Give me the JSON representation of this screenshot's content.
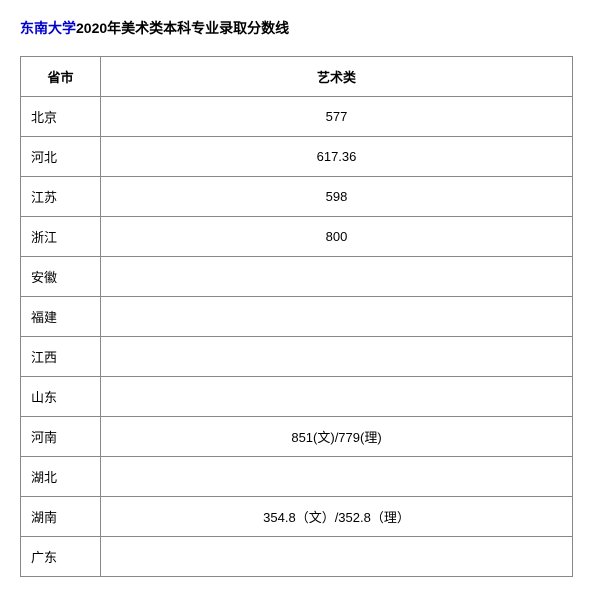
{
  "title": {
    "university": "东南大学",
    "rest": "2020年美术类本科专业录取分数线"
  },
  "table": {
    "headers": {
      "province": "省市",
      "score": "艺术类"
    },
    "rows": [
      {
        "province": "北京",
        "score": "577"
      },
      {
        "province": "河北",
        "score": "617.36"
      },
      {
        "province": "江苏",
        "score": "598"
      },
      {
        "province": "浙江",
        "score": "800"
      },
      {
        "province": "安徽",
        "score": ""
      },
      {
        "province": "福建",
        "score": ""
      },
      {
        "province": "江西",
        "score": ""
      },
      {
        "province": "山东",
        "score": ""
      },
      {
        "province": "河南",
        "score": "851(文)/779(理)"
      },
      {
        "province": "湖北",
        "score": ""
      },
      {
        "province": "湖南",
        "score": "354.8（文）/352.8（理）"
      },
      {
        "province": "广东",
        "score": ""
      }
    ]
  },
  "colors": {
    "university_link": "#0000cc",
    "text": "#000000",
    "border": "#888888",
    "background": "#ffffff"
  }
}
